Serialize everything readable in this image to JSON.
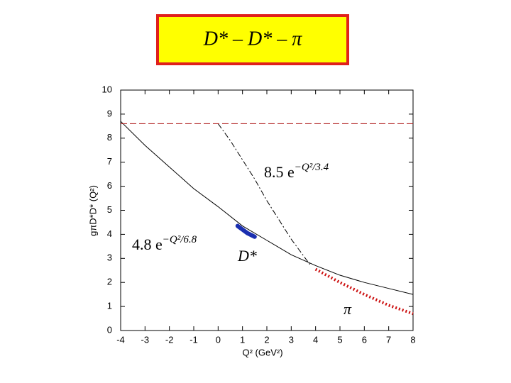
{
  "title": "D* – D* – π",
  "chart_data": {
    "type": "line",
    "x_label": "Q² (GeV²)",
    "y_label": "gπD*D* (Q²)",
    "xlim": [
      -4,
      8
    ],
    "ylim": [
      0,
      10
    ],
    "xticks": [
      -4,
      -3,
      -2,
      -1,
      0,
      1,
      2,
      3,
      4,
      5,
      6,
      7,
      8
    ],
    "yticks": [
      0,
      1,
      2,
      3,
      4,
      5,
      6,
      7,
      8,
      9,
      10
    ],
    "grid": false,
    "series": [
      {
        "color": "#000000",
        "style": "solid",
        "x": [
          -4,
          -3,
          -2,
          -1,
          0,
          1,
          2,
          3,
          4,
          5,
          6,
          7,
          8
        ],
        "values": [
          8.7,
          7.7,
          6.8,
          5.9,
          5.15,
          4.35,
          3.75,
          3.15,
          2.7,
          2.3,
          2.0,
          1.75,
          1.5
        ]
      },
      {
        "color": "#000000",
        "style": "dashdot",
        "x": [
          0,
          0.5,
          1,
          1.5,
          2,
          2.5,
          3,
          3.8
        ],
        "values": [
          8.6,
          7.9,
          7.1,
          6.3,
          5.4,
          4.6,
          3.8,
          2.7
        ]
      },
      {
        "color": "#b22222",
        "style": "dashed",
        "x": [
          -4,
          8
        ],
        "values": [
          8.6,
          8.6
        ]
      },
      {
        "color": "#1a2fb0",
        "style": "thick",
        "x": [
          0.8,
          1.0,
          1.2,
          1.5
        ],
        "values": [
          4.35,
          4.2,
          4.05,
          3.9
        ]
      },
      {
        "color": "#cc1010",
        "style": "dotted",
        "x": [
          4,
          5,
          6,
          7,
          8
        ],
        "values": [
          2.55,
          2.0,
          1.5,
          1.05,
          0.7
        ]
      }
    ],
    "annotations": [
      {
        "base": "8.5 e",
        "exponent": "−Q²/3.4"
      },
      {
        "base": "4.8 e",
        "exponent": "−Q²/6.8"
      },
      {
        "base": "D*"
      },
      {
        "base": "π"
      }
    ]
  }
}
